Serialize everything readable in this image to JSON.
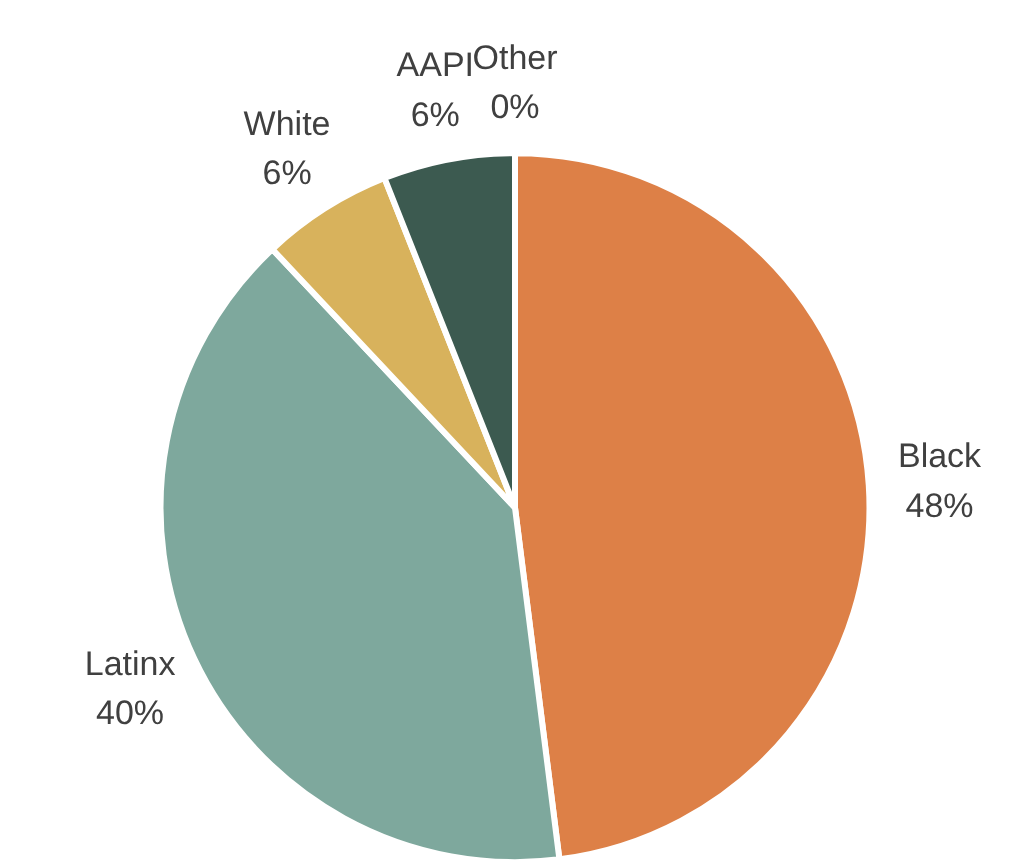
{
  "chart_data": {
    "type": "pie",
    "categories": [
      "Black",
      "Latinx",
      "White",
      "AAPI",
      "Other"
    ],
    "values": [
      48,
      40,
      6,
      6,
      0
    ],
    "value_labels": [
      "48%",
      "40%",
      "6%",
      "6%",
      "0%"
    ],
    "colors": [
      "#dd8047",
      "#7ea89d",
      "#d8b25c",
      "#3c5a50",
      "#a5ab81"
    ]
  }
}
